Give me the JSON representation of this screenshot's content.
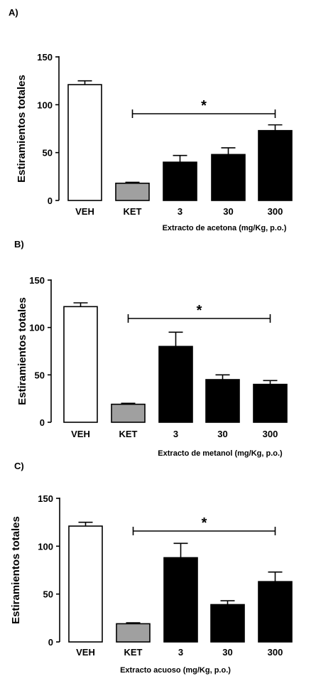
{
  "chart_data": [
    {
      "type": "bar",
      "panel": "A)",
      "categories": [
        "VEH",
        "KET",
        "3",
        "30",
        "300"
      ],
      "values": [
        121,
        18,
        40,
        48,
        73
      ],
      "errors": [
        4,
        1,
        7,
        7,
        6
      ],
      "bar_colors": [
        "#ffffff",
        "#a0a0a0",
        "#000000",
        "#000000",
        "#000000"
      ],
      "ylabel": "Estiramientos totales",
      "xlabel": "Extracto de acetona (mg/Kg, p.o.)",
      "yticks": [
        0,
        50,
        100,
        150
      ],
      "ylim": [
        0,
        150
      ],
      "significance": {
        "symbol": "*",
        "from": "KET",
        "to": "300",
        "level": 93
      },
      "grid": false
    },
    {
      "type": "bar",
      "panel": "B)",
      "categories": [
        "VEH",
        "KET",
        "3",
        "30",
        "300"
      ],
      "values": [
        122,
        19,
        80,
        45,
        40
      ],
      "errors": [
        4,
        1,
        15,
        5,
        4
      ],
      "bar_colors": [
        "#ffffff",
        "#a0a0a0",
        "#000000",
        "#000000",
        "#000000"
      ],
      "ylabel": "Estiramientos totales",
      "xlabel": "Extracto de metanol (mg/Kg, p.o.)",
      "yticks": [
        0,
        50,
        100,
        150
      ],
      "ylim": [
        0,
        150
      ],
      "significance": {
        "symbol": "*",
        "from": "KET",
        "to": "300",
        "level": 109
      },
      "grid": false
    },
    {
      "type": "bar",
      "panel": "C)",
      "categories": [
        "VEH",
        "KET",
        "3",
        "30",
        "300"
      ],
      "values": [
        121,
        19,
        88,
        39,
        63
      ],
      "errors": [
        4,
        1,
        15,
        4,
        10
      ],
      "bar_colors": [
        "#ffffff",
        "#a0a0a0",
        "#000000",
        "#000000",
        "#000000"
      ],
      "ylabel": "Estiramientos totales",
      "xlabel": "Extracto acuoso (mg/Kg, p.o.)",
      "yticks": [
        0,
        50,
        100,
        150
      ],
      "ylim": [
        0,
        150
      ],
      "significance": {
        "symbol": "*",
        "from": "KET",
        "to": "300",
        "level": 116
      },
      "grid": false
    }
  ]
}
